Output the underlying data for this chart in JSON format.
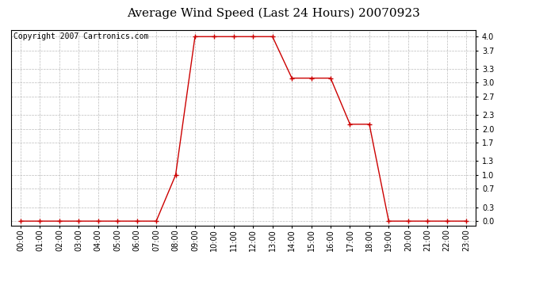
{
  "title": "Average Wind Speed (Last 24 Hours) 20070923",
  "copyright": "Copyright 2007 Cartronics.com",
  "hours": [
    "00:00",
    "01:00",
    "02:00",
    "03:00",
    "04:00",
    "05:00",
    "06:00",
    "07:00",
    "08:00",
    "09:00",
    "10:00",
    "11:00",
    "12:00",
    "13:00",
    "14:00",
    "15:00",
    "16:00",
    "17:00",
    "18:00",
    "19:00",
    "20:00",
    "21:00",
    "22:00",
    "23:00"
  ],
  "values": [
    0.0,
    0.0,
    0.0,
    0.0,
    0.0,
    0.0,
    0.0,
    0.0,
    1.0,
    4.0,
    4.0,
    4.0,
    4.0,
    4.0,
    3.1,
    3.1,
    3.1,
    2.1,
    2.1,
    0.0,
    0.0,
    0.0,
    0.0,
    0.0
  ],
  "line_color": "#cc0000",
  "marker": "+",
  "marker_color": "#cc0000",
  "bg_color": "#ffffff",
  "grid_color": "#bbbbbb",
  "yticks": [
    0.0,
    0.3,
    0.7,
    1.0,
    1.3,
    1.7,
    2.0,
    2.3,
    2.7,
    3.0,
    3.3,
    3.7,
    4.0
  ],
  "ylim": [
    -0.1,
    4.15
  ],
  "title_fontsize": 11,
  "copyright_fontsize": 7,
  "tick_fontsize": 7,
  "border_color": "#000000"
}
